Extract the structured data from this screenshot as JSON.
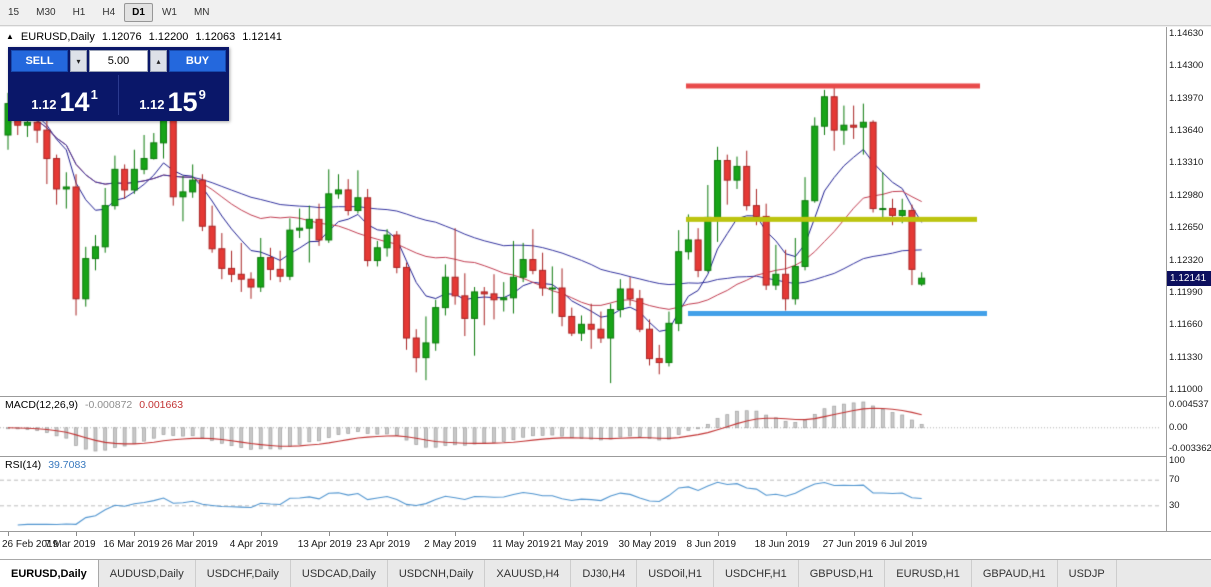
{
  "icons": {
    "collapse": "▲",
    "spinner_down": "▾",
    "spinner_up": "▴"
  },
  "toolbar": {
    "timeframes": [
      {
        "label": "15",
        "active": false
      },
      {
        "label": "M30",
        "active": false
      },
      {
        "label": "H1",
        "active": false
      },
      {
        "label": "H4",
        "active": false
      },
      {
        "label": "D1",
        "active": true
      },
      {
        "label": "W1",
        "active": false
      },
      {
        "label": "MN",
        "active": false
      }
    ]
  },
  "chart": {
    "header": {
      "symbol_label": "EURUSD,Daily",
      "open": "1.12076",
      "high": "1.12200",
      "low": "1.12063",
      "close": "1.12141"
    },
    "trade_panel": {
      "sell_label": "SELL",
      "buy_label": "BUY",
      "volume": "5.00",
      "sell_price": {
        "big": "1.12",
        "pips": "14",
        "pt": "1"
      },
      "buy_price": {
        "big": "1.12",
        "pips": "15",
        "pt": "9"
      }
    },
    "price_axis": [
      "1.14630",
      "1.14300",
      "1.13970",
      "1.13640",
      "1.13310",
      "1.12980",
      "1.12650",
      "1.12320",
      "1.11990",
      "1.11660",
      "1.11330",
      "1.11000"
    ],
    "current_price": "1.12141"
  },
  "chart_data": {
    "type": "candlestick",
    "symbol": "EURUSD",
    "timeframe": "Daily",
    "ylim": [
      1.11,
      1.1463
    ],
    "colors": {
      "bull": "#18a418",
      "bull_border": "#0c7a0c",
      "bear": "#e53935",
      "bear_border": "#a82424"
    },
    "x_labels": [
      {
        "i": 0,
        "label": "26 Feb 2019"
      },
      {
        "i": 7,
        "label": "7 Mar 2019"
      },
      {
        "i": 13,
        "label": "16 Mar 2019"
      },
      {
        "i": 19,
        "label": "26 Mar 2019"
      },
      {
        "i": 26,
        "label": "4 Apr 2019"
      },
      {
        "i": 33,
        "label": "13 Apr 2019"
      },
      {
        "i": 39,
        "label": "23 Apr 2019"
      },
      {
        "i": 46,
        "label": "2 May 2019"
      },
      {
        "i": 53,
        "label": "11 May 2019"
      },
      {
        "i": 59,
        "label": "21 May 2019"
      },
      {
        "i": 66,
        "label": "30 May 2019"
      },
      {
        "i": 73,
        "label": "8 Jun 2019"
      },
      {
        "i": 80,
        "label": "18 Jun 2019"
      },
      {
        "i": 87,
        "label": "27 Jun 2019"
      },
      {
        "i": 93,
        "label": "6 Jul 2019"
      }
    ],
    "candles": [
      [
        1.136,
        1.1403,
        1.1345,
        1.1392
      ],
      [
        1.1392,
        1.1404,
        1.136,
        1.137
      ],
      [
        1.137,
        1.1389,
        1.1358,
        1.1373
      ],
      [
        1.1373,
        1.141,
        1.1352,
        1.1365
      ],
      [
        1.1365,
        1.1375,
        1.131,
        1.1336
      ],
      [
        1.1336,
        1.134,
        1.1289,
        1.1305
      ],
      [
        1.1305,
        1.1322,
        1.1285,
        1.1307
      ],
      [
        1.1307,
        1.132,
        1.1176,
        1.1193
      ],
      [
        1.1193,
        1.1246,
        1.1185,
        1.1234
      ],
      [
        1.1234,
        1.1258,
        1.1222,
        1.1246
      ],
      [
        1.1246,
        1.1306,
        1.124,
        1.1288
      ],
      [
        1.1288,
        1.1339,
        1.1284,
        1.1325
      ],
      [
        1.1325,
        1.133,
        1.1295,
        1.1304
      ],
      [
        1.1304,
        1.1345,
        1.13,
        1.1325
      ],
      [
        1.1325,
        1.136,
        1.132,
        1.1336
      ],
      [
        1.1336,
        1.1362,
        1.1335,
        1.1352
      ],
      [
        1.1352,
        1.139,
        1.1336,
        1.1375
      ],
      [
        1.1375,
        1.138,
        1.1288,
        1.1297
      ],
      [
        1.1297,
        1.1318,
        1.1272,
        1.1302
      ],
      [
        1.1302,
        1.133,
        1.1296,
        1.1314
      ],
      [
        1.1314,
        1.132,
        1.1262,
        1.1267
      ],
      [
        1.1267,
        1.1288,
        1.124,
        1.1244
      ],
      [
        1.1244,
        1.126,
        1.1213,
        1.1224
      ],
      [
        1.1224,
        1.1242,
        1.121,
        1.1218
      ],
      [
        1.1218,
        1.125,
        1.12,
        1.1213
      ],
      [
        1.1213,
        1.122,
        1.1193,
        1.1205
      ],
      [
        1.1205,
        1.1255,
        1.12,
        1.1235
      ],
      [
        1.1235,
        1.1245,
        1.1212,
        1.1223
      ],
      [
        1.1223,
        1.1242,
        1.121,
        1.1216
      ],
      [
        1.1216,
        1.1275,
        1.1212,
        1.1263
      ],
      [
        1.1263,
        1.1285,
        1.1255,
        1.1265
      ],
      [
        1.1265,
        1.1288,
        1.123,
        1.1274
      ],
      [
        1.1274,
        1.129,
        1.1247,
        1.1253
      ],
      [
        1.1253,
        1.1325,
        1.125,
        1.13
      ],
      [
        1.13,
        1.132,
        1.1295,
        1.1304
      ],
      [
        1.1304,
        1.1315,
        1.1278,
        1.1283
      ],
      [
        1.1283,
        1.1324,
        1.128,
        1.1296
      ],
      [
        1.1296,
        1.1305,
        1.1226,
        1.1232
      ],
      [
        1.1232,
        1.1252,
        1.1226,
        1.1245
      ],
      [
        1.1245,
        1.1264,
        1.1236,
        1.1258
      ],
      [
        1.1258,
        1.1262,
        1.1219,
        1.1225
      ],
      [
        1.1225,
        1.123,
        1.1141,
        1.1153
      ],
      [
        1.1153,
        1.1162,
        1.1118,
        1.1133
      ],
      [
        1.1133,
        1.1175,
        1.111,
        1.1148
      ],
      [
        1.1148,
        1.1192,
        1.114,
        1.1184
      ],
      [
        1.1184,
        1.1228,
        1.1176,
        1.1215
      ],
      [
        1.1215,
        1.1265,
        1.1187,
        1.1196
      ],
      [
        1.1196,
        1.1219,
        1.1155,
        1.1173
      ],
      [
        1.1173,
        1.1205,
        1.1135,
        1.12
      ],
      [
        1.12,
        1.1205,
        1.1166,
        1.1198
      ],
      [
        1.1198,
        1.1218,
        1.1172,
        1.1192
      ],
      [
        1.1192,
        1.121,
        1.118,
        1.1194
      ],
      [
        1.1194,
        1.1252,
        1.1178,
        1.1215
      ],
      [
        1.1215,
        1.125,
        1.121,
        1.1233
      ],
      [
        1.1233,
        1.1264,
        1.1218,
        1.1222
      ],
      [
        1.1222,
        1.124,
        1.1196,
        1.1204
      ],
      [
        1.1204,
        1.1226,
        1.1178,
        1.1204
      ],
      [
        1.1204,
        1.1224,
        1.1165,
        1.1175
      ],
      [
        1.1175,
        1.1184,
        1.1155,
        1.1158
      ],
      [
        1.1158,
        1.1176,
        1.115,
        1.1167
      ],
      [
        1.1167,
        1.1188,
        1.1142,
        1.1162
      ],
      [
        1.1162,
        1.118,
        1.1148,
        1.1153
      ],
      [
        1.1153,
        1.1188,
        1.1107,
        1.1182
      ],
      [
        1.1182,
        1.1213,
        1.1174,
        1.1203
      ],
      [
        1.1203,
        1.1215,
        1.1186,
        1.1193
      ],
      [
        1.1193,
        1.1202,
        1.1159,
        1.1162
      ],
      [
        1.1162,
        1.1172,
        1.1125,
        1.1132
      ],
      [
        1.1132,
        1.1146,
        1.1116,
        1.1128
      ],
      [
        1.1128,
        1.118,
        1.1124,
        1.1168
      ],
      [
        1.1168,
        1.1263,
        1.116,
        1.1241
      ],
      [
        1.1241,
        1.1279,
        1.1233,
        1.1253
      ],
      [
        1.1253,
        1.1265,
        1.1215,
        1.1222
      ],
      [
        1.1222,
        1.1309,
        1.122,
        1.1276
      ],
      [
        1.1276,
        1.1348,
        1.1251,
        1.1334
      ],
      [
        1.1334,
        1.134,
        1.1289,
        1.1314
      ],
      [
        1.1314,
        1.1338,
        1.1305,
        1.1328
      ],
      [
        1.1328,
        1.1344,
        1.1283,
        1.1288
      ],
      [
        1.1288,
        1.1305,
        1.1268,
        1.1277
      ],
      [
        1.1277,
        1.129,
        1.1202,
        1.1207
      ],
      [
        1.1207,
        1.1248,
        1.1202,
        1.1218
      ],
      [
        1.1218,
        1.1243,
        1.1181,
        1.1193
      ],
      [
        1.1193,
        1.1255,
        1.1187,
        1.1226
      ],
      [
        1.1226,
        1.1317,
        1.1222,
        1.1293
      ],
      [
        1.1293,
        1.1378,
        1.1291,
        1.1369
      ],
      [
        1.1369,
        1.1406,
        1.136,
        1.1399
      ],
      [
        1.1399,
        1.1412,
        1.1344,
        1.1365
      ],
      [
        1.1365,
        1.139,
        1.135,
        1.137
      ],
      [
        1.137,
        1.139,
        1.1356,
        1.1368
      ],
      [
        1.1368,
        1.1392,
        1.134,
        1.1373
      ],
      [
        1.1373,
        1.1375,
        1.1281,
        1.1285
      ],
      [
        1.1285,
        1.1322,
        1.1275,
        1.1285
      ],
      [
        1.1285,
        1.1295,
        1.1268,
        1.1278
      ],
      [
        1.1278,
        1.1295,
        1.127,
        1.1283
      ],
      [
        1.1283,
        1.1289,
        1.1207,
        1.1223
      ],
      [
        1.1208,
        1.122,
        1.1206,
        1.1214
      ]
    ],
    "overlays": {
      "mas": [
        {
          "type": "ema",
          "period": 8,
          "color": "#1c1c90"
        },
        {
          "type": "sma",
          "period": 20,
          "color": "#c03a4e"
        },
        {
          "type": "sma",
          "period": 45,
          "color": "#31319e"
        }
      ],
      "hlines": [
        {
          "name": "resistance-line",
          "price": 1.141,
          "color": "#e84a4a",
          "x1": 686,
          "x2": 980
        },
        {
          "name": "mid-line",
          "price": 1.1274,
          "color": "#bcc40e",
          "x1": 686,
          "x2": 977
        },
        {
          "name": "support-line",
          "price": 1.1178,
          "color": "#42a0e8",
          "x1": 688,
          "x2": 987
        }
      ]
    },
    "indicators": {
      "macd": {
        "label": "MACD(12,26,9)",
        "value_main": "-0.000872",
        "value_signal": "0.001663",
        "fast": 12,
        "slow": 26,
        "signal": 9,
        "hist_color": "#c9c9c9",
        "hist_border": "#9f9f9f",
        "signal_color": "#c23434",
        "scale_labels": [
          "0.004537",
          "0.00",
          "-0.003362"
        ]
      },
      "rsi": {
        "label": "RSI(14)",
        "value": "39.7083",
        "period": 14,
        "levels": [
          70,
          30
        ],
        "line_color": "#4f94cf",
        "level_color": "#bcbcbc",
        "scale_labels": [
          "100",
          "70",
          "30"
        ]
      }
    }
  },
  "tabs": [
    {
      "label": "EURUSD,Daily",
      "active": true
    },
    {
      "label": "AUDUSD,Daily",
      "active": false
    },
    {
      "label": "USDCHF,Daily",
      "active": false
    },
    {
      "label": "USDCAD,Daily",
      "active": false
    },
    {
      "label": "USDCNH,Daily",
      "active": false
    },
    {
      "label": "XAUUSD,H4",
      "active": false
    },
    {
      "label": "DJ30,H4",
      "active": false
    },
    {
      "label": "USDOil,H1",
      "active": false
    },
    {
      "label": "USDCHF,H1",
      "active": false
    },
    {
      "label": "GBPUSD,H1",
      "active": false
    },
    {
      "label": "EURUSD,H1",
      "active": false
    },
    {
      "label": "GBPAUD,H1",
      "active": false
    },
    {
      "label": "USDJP",
      "active": false
    }
  ]
}
